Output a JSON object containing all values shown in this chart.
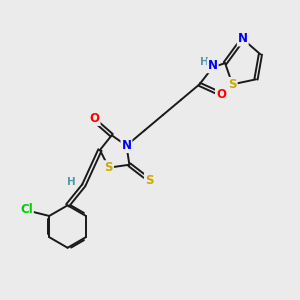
{
  "bg_color": "#ebebeb",
  "bond_color": "#1a1a1a",
  "atom_colors": {
    "N": "#0000ff",
    "O": "#ff0000",
    "S": "#ccaa00",
    "Cl": "#00cc00",
    "H": "#5599aa",
    "C": "#1a1a1a"
  },
  "font_size_atom": 8.5,
  "line_width": 1.4
}
